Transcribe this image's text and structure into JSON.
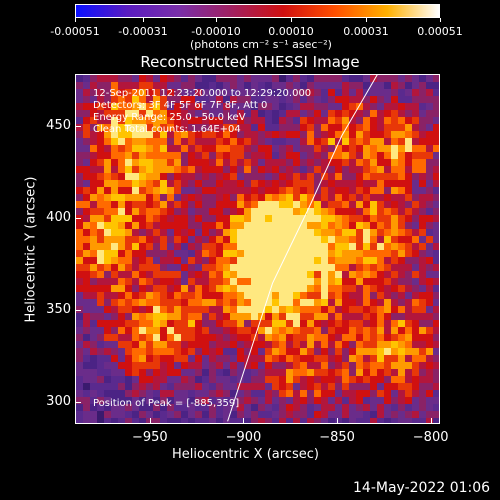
{
  "colorbar": {
    "ticks": [
      "-0.00051",
      "-0.00031",
      "-0.00010",
      "0.00010",
      "0.00031",
      "0.00051"
    ],
    "units": "(photons cm⁻² s⁻¹ asec⁻²)",
    "colors": [
      "#0a10ff",
      "#5a1cc0",
      "#7a2fa8",
      "#a02060",
      "#d01010",
      "#ff5000",
      "#ffb000",
      "#ffffff"
    ]
  },
  "chart_data": {
    "type": "heatmap",
    "title": "Reconstructed RHESSI Image",
    "xlabel": "Heliocentric X (arcsec)",
    "ylabel": "Heliocentric Y (arcsec)",
    "xlim": [
      -990,
      -795
    ],
    "ylim": [
      288,
      478
    ],
    "xticks": [
      -950,
      -900,
      -850,
      -800
    ],
    "yticks": [
      300,
      350,
      400,
      450
    ],
    "xtick_labels": [
      "−950",
      "−900",
      "−850",
      "−800"
    ],
    "ytick_labels": [
      "300",
      "350",
      "400",
      "450"
    ],
    "annotations": [
      "12-Sep-2011 12:23:20.000 to 12:29:20.000",
      "Detectors: 3F 4F 5F 6F 7F 8F, Att 0",
      "Energy Range: 25.0 - 50.0 keV",
      "Clean     Total counts: 1.64E+04"
    ],
    "peak_label": "Position of Peak = [-885,359]",
    "peak": {
      "x": -885,
      "y": 359
    },
    "limb_curve": [
      [
        -909,
        290
      ],
      [
        -885,
        365
      ],
      [
        -866,
        405
      ],
      [
        -848,
        445
      ],
      [
        -828,
        480
      ]
    ]
  },
  "footer": {
    "timestamp": "14-May-2022 01:06"
  }
}
